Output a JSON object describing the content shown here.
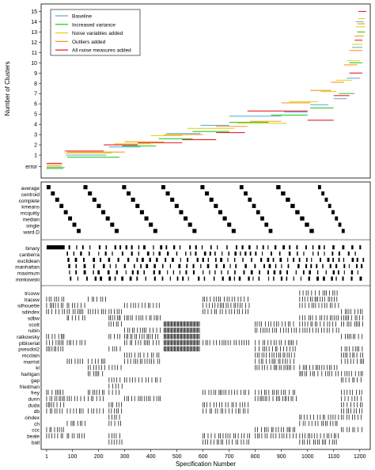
{
  "chart_data": {
    "type": "specification-curve",
    "xlabel": "Specification Number",
    "xticks": [
      1,
      100,
      200,
      300,
      400,
      500,
      600,
      700,
      800,
      900,
      1000,
      1100,
      1200
    ],
    "xlim": [
      -20,
      1240
    ],
    "top_panel": {
      "ylabel": "Number of Clusters",
      "y_tick_labels": [
        "error",
        "1",
        "2",
        "3",
        "4",
        "5",
        "6",
        "7",
        "8",
        "9",
        "10",
        "11",
        "12",
        "13",
        "14",
        "15"
      ],
      "ylim": [
        -1,
        15.5
      ],
      "legend": [
        {
          "name": "Baseline",
          "color": "#6baed6"
        },
        {
          "name": "Increased variance",
          "color": "#31c831"
        },
        {
          "name": "Noise variables added",
          "color": "#e6d21a"
        },
        {
          "name": "Outliers added",
          "color": "#f09a2a"
        },
        {
          "name": "All noise measures added",
          "color": "#e3262a"
        }
      ],
      "series": [
        {
          "name": "Baseline",
          "color": "#6baed6",
          "segments": [
            [
              1,
              70,
              -0.1
            ],
            [
              75,
              230,
              1
            ],
            [
              240,
              360,
              1.8
            ],
            [
              360,
              460,
              2.2
            ],
            [
              460,
              590,
              3.1
            ],
            [
              590,
              700,
              3.9
            ],
            [
              700,
              900,
              4.8
            ],
            [
              910,
              1000,
              5.2
            ],
            [
              1010,
              1080,
              5.9
            ],
            [
              1100,
              1150,
              6.5
            ],
            [
              1150,
              1200,
              8.5
            ],
            [
              1170,
              1210,
              11.5
            ],
            [
              1185,
              1215,
              14
            ]
          ]
        },
        {
          "name": "Increased variance",
          "color": "#31c831",
          "segments": [
            [
              1,
              65,
              -0.2
            ],
            [
              80,
              280,
              0.8
            ],
            [
              290,
              420,
              1.9
            ],
            [
              430,
              560,
              2.6
            ],
            [
              560,
              700,
              3.3
            ],
            [
              700,
              850,
              4.2
            ],
            [
              860,
              1000,
              4.9
            ],
            [
              1010,
              1100,
              5.6
            ],
            [
              1120,
              1180,
              7
            ],
            [
              1160,
              1210,
              10
            ],
            [
              1190,
              1220,
              13
            ]
          ]
        },
        {
          "name": "Noise variables added",
          "color": "#e6d21a",
          "segments": [
            [
              1,
              60,
              0
            ],
            [
              70,
              250,
              1.2
            ],
            [
              260,
              400,
              2.1
            ],
            [
              400,
              520,
              2.9
            ],
            [
              540,
              720,
              3.6
            ],
            [
              730,
              920,
              4.1
            ],
            [
              930,
              1040,
              6.2
            ],
            [
              1050,
              1110,
              7.2
            ],
            [
              1110,
              1170,
              8.3
            ],
            [
              1150,
              1200,
              10.2
            ],
            [
              1170,
              1210,
              11.8
            ],
            [
              1185,
              1220,
              13.5
            ],
            [
              1195,
              1220,
              14.3
            ]
          ]
        },
        {
          "name": "Outliers added",
          "color": "#f09a2a",
          "segments": [
            [
              1,
              60,
              0.15
            ],
            [
              80,
              300,
              1.3
            ],
            [
              300,
              450,
              2.3
            ],
            [
              450,
              600,
              3.0
            ],
            [
              650,
              770,
              3.8
            ],
            [
              780,
              900,
              4.3
            ],
            [
              900,
              1010,
              6.1
            ],
            [
              1010,
              1090,
              7.3
            ],
            [
              1090,
              1140,
              8.1
            ],
            [
              1140,
              1190,
              9.8
            ],
            [
              1160,
              1210,
              11.2
            ],
            [
              1180,
              1215,
              12.6
            ],
            [
              1190,
              1220,
              13.8
            ]
          ]
        },
        {
          "name": "All noise measures added",
          "color": "#e3262a",
          "segments": [
            [
              1,
              60,
              0.3
            ],
            [
              70,
              220,
              1.4
            ],
            [
              220,
              350,
              2.0
            ],
            [
              350,
              520,
              2.2
            ],
            [
              520,
              650,
              2.5
            ],
            [
              650,
              760,
              3.2
            ],
            [
              770,
              1000,
              5.3
            ],
            [
              1000,
              1100,
              4.4
            ],
            [
              1100,
              1160,
              6.8
            ],
            [
              1160,
              1210,
              9
            ],
            [
              1180,
              1210,
              12.2
            ],
            [
              1195,
              1225,
              15
            ]
          ]
        }
      ]
    },
    "method_panel": {
      "labels": [
        "average",
        "centroid",
        "complete",
        "kmeans",
        "mcquitty",
        "median",
        "single",
        "ward.D"
      ]
    },
    "distance_panel": {
      "labels": [
        "binary",
        "canberra",
        "euclidean",
        "manhattan",
        "maximum",
        "minkowski"
      ]
    },
    "index_panel": {
      "labels": [
        "trcovw",
        "tracew",
        "silhouette",
        "sdindex",
        "sdbw",
        "scott",
        "rubin",
        "ratkowsky",
        "ptbiserial",
        "pseudot2",
        "mcclain",
        "marriot",
        "kl",
        "hartigan",
        "gap",
        "friedman",
        "frey",
        "dunn",
        "duda",
        "db",
        "cindex",
        "ch",
        "ccc",
        "beale",
        "ball"
      ]
    }
  }
}
